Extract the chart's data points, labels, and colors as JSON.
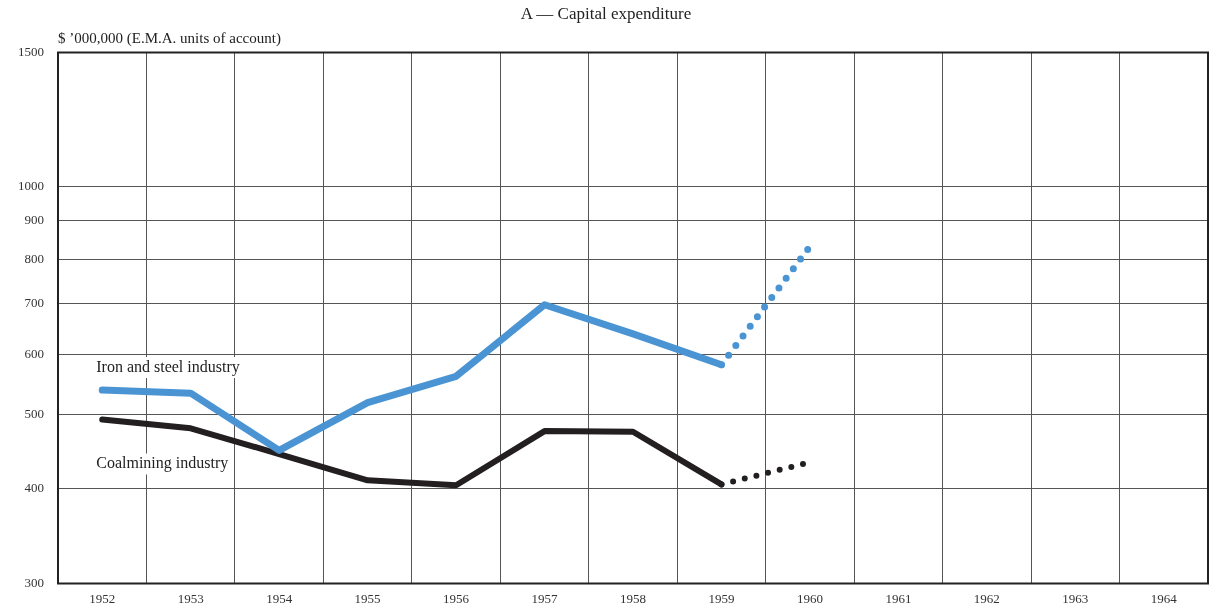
{
  "chart_data": {
    "type": "line",
    "title": "A — Capital expenditure",
    "ylabel": "$ ’000,000 (E.M.A. units of account)",
    "categories": [
      "1952",
      "1953",
      "1954",
      "1955",
      "1956",
      "1957",
      "1958",
      "1959",
      "1960",
      "1961",
      "1962",
      "1963",
      "1964"
    ],
    "series": [
      {
        "name": "Iron and steel industry",
        "color": "#4a94d4",
        "values": [
          539,
          534,
          449,
          519,
          562,
          698,
          639,
          582,
          null,
          null,
          null,
          null,
          null
        ]
      },
      {
        "color": "#4a94d4",
        "line_style": "dotted",
        "values": [
          null,
          null,
          null,
          null,
          null,
          null,
          null,
          582,
          833,
          null,
          null,
          null,
          null
        ]
      },
      {
        "name": "Coalmining industry",
        "color": "#231f20",
        "values": [
          493,
          480,
          444,
          410,
          404,
          476,
          475,
          405,
          null,
          null,
          null,
          null,
          null
        ]
      },
      {
        "color": "#231f20",
        "line_style": "dotted",
        "values": [
          null,
          null,
          null,
          null,
          null,
          null,
          null,
          405,
          433,
          null,
          null,
          null,
          null
        ]
      }
    ],
    "log": true,
    "ylim": [
      300,
      1500
    ],
    "yticks": [
      300,
      400,
      500,
      600,
      700,
      800,
      900,
      1000,
      1500
    ],
    "grid": true,
    "legend": false,
    "marker": "none",
    "line_style": "solid"
  }
}
